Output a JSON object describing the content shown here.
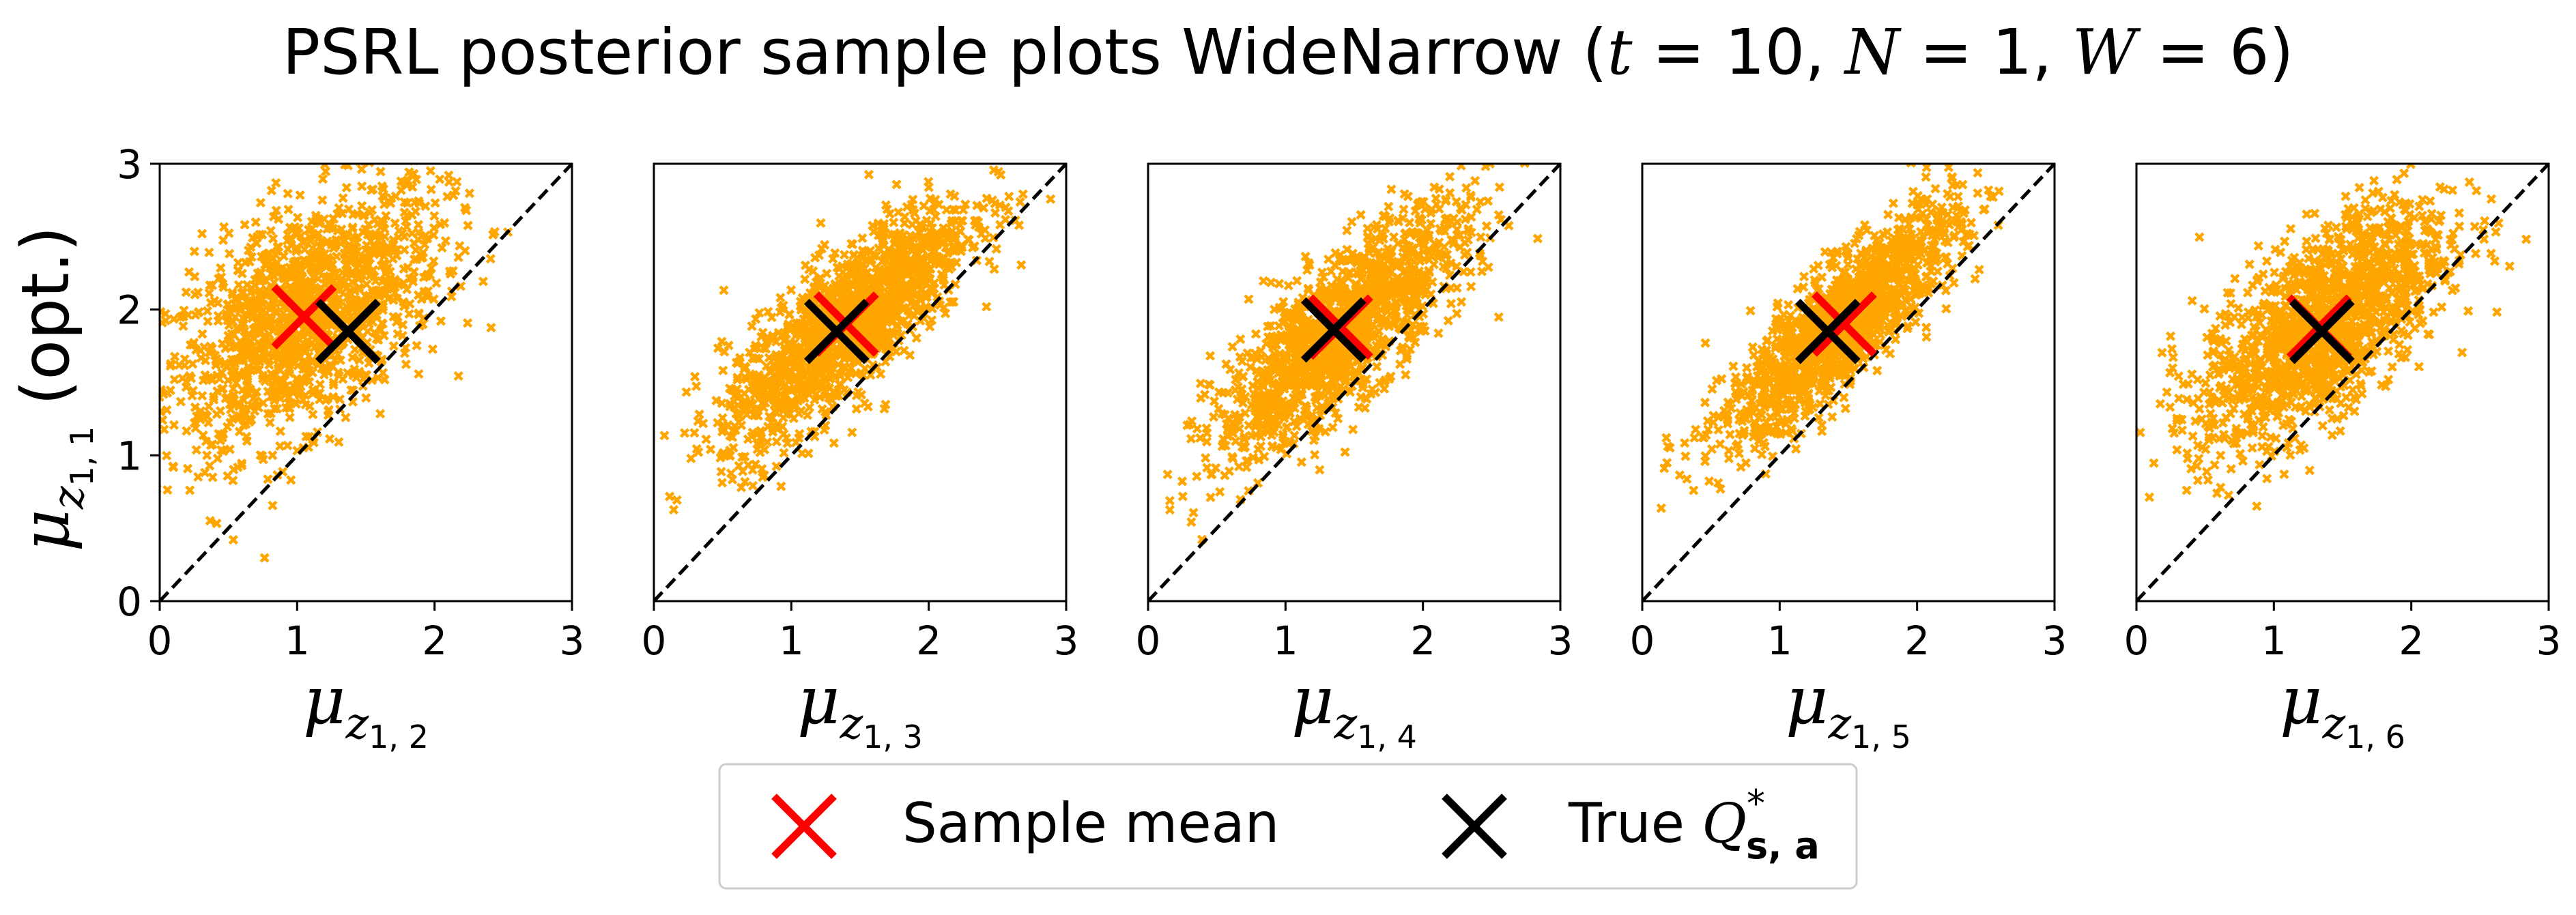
{
  "title": {
    "prefix": "PSRL posterior sample plots WideNarrow (",
    "t_sym": "t",
    "t_val": " = 10, ",
    "n_sym": "N",
    "n_val": " = 1, ",
    "w_sym": "W",
    "w_val": " = 6)"
  },
  "ylabel": {
    "mu": "μ",
    "sub": "z",
    "subsub": "1, 1",
    "suffix": " (opt.)"
  },
  "legend": {
    "sample_mean": "Sample mean",
    "true_q_prefix": "True ",
    "true_q_sym": "Q",
    "true_q_sup": "*",
    "true_q_sub": "s, a"
  },
  "colors": {
    "samples": "#ffa500",
    "sample_mean": "#ff0000",
    "true_q": "#000000",
    "diagonal": "#000000"
  },
  "chart_data": [
    {
      "type": "scatter",
      "xlabel": "μ_{z_{1,2}}",
      "xlabel_sub": "1, 2",
      "ylabel": "μ_{z_{1,1}} (opt.)",
      "xlim": [
        0,
        3
      ],
      "ylim": [
        0,
        3
      ],
      "xticks": [
        "0",
        "1",
        "2",
        "3"
      ],
      "yticks": [
        "0",
        "1",
        "2",
        "3"
      ],
      "show_yticks": true,
      "samples_estimated": {
        "count": 1500,
        "mean_x": 1.05,
        "mean_y": 1.95,
        "sd_x": 0.5,
        "sd_y": 0.45,
        "corr": 0.55
      },
      "sample_mean": [
        1.05,
        1.95
      ],
      "true_q": [
        1.37,
        1.85
      ],
      "diagonal": [
        [
          0,
          0
        ],
        [
          3,
          3
        ]
      ]
    },
    {
      "type": "scatter",
      "xlabel": "μ_{z_{1,3}}",
      "xlabel_sub": "1, 3",
      "xlim": [
        0,
        3
      ],
      "ylim": [
        0,
        3
      ],
      "xticks": [
        "0",
        "1",
        "2",
        "3"
      ],
      "show_yticks": false,
      "samples_estimated": {
        "count": 1500,
        "mean_x": 1.4,
        "mean_y": 1.9,
        "sd_x": 0.45,
        "sd_y": 0.42,
        "corr": 0.8
      },
      "sample_mean": [
        1.4,
        1.9
      ],
      "true_q": [
        1.33,
        1.85
      ],
      "diagonal": [
        [
          0,
          0
        ],
        [
          3,
          3
        ]
      ]
    },
    {
      "type": "scatter",
      "xlabel": "μ_{z_{1,4}}",
      "xlabel_sub": "1, 4",
      "xlim": [
        0,
        3
      ],
      "ylim": [
        0,
        3
      ],
      "xticks": [
        "0",
        "1",
        "2",
        "3"
      ],
      "show_yticks": false,
      "samples_estimated": {
        "count": 1500,
        "mean_x": 1.4,
        "mean_y": 1.85,
        "sd_x": 0.45,
        "sd_y": 0.42,
        "corr": 0.8
      },
      "sample_mean": [
        1.4,
        1.88
      ],
      "true_q": [
        1.35,
        1.86
      ],
      "diagonal": [
        [
          0,
          0
        ],
        [
          3,
          3
        ]
      ]
    },
    {
      "type": "scatter",
      "xlabel": "μ_{z_{1,5}}",
      "xlabel_sub": "1, 5",
      "xlim": [
        0,
        3
      ],
      "ylim": [
        0,
        3
      ],
      "xticks": [
        "0",
        "1",
        "2",
        "3"
      ],
      "show_yticks": false,
      "samples_estimated": {
        "count": 1500,
        "mean_x": 1.45,
        "mean_y": 1.9,
        "sd_x": 0.42,
        "sd_y": 0.4,
        "corr": 0.85
      },
      "sample_mean": [
        1.47,
        1.9
      ],
      "true_q": [
        1.35,
        1.85
      ],
      "diagonal": [
        [
          0,
          0
        ],
        [
          3,
          3
        ]
      ]
    },
    {
      "type": "scatter",
      "xlabel": "μ_{z_{1,6}}",
      "xlabel_sub": "1, 6",
      "xlim": [
        0,
        3
      ],
      "ylim": [
        0,
        3
      ],
      "xticks": [
        "0",
        "1",
        "2",
        "3"
      ],
      "show_yticks": false,
      "samples_estimated": {
        "count": 1500,
        "mean_x": 1.35,
        "mean_y": 1.9,
        "sd_x": 0.45,
        "sd_y": 0.42,
        "corr": 0.65
      },
      "sample_mean": [
        1.33,
        1.88
      ],
      "true_q": [
        1.35,
        1.85
      ],
      "diagonal": [
        [
          0,
          0
        ],
        [
          3,
          3
        ]
      ]
    }
  ]
}
